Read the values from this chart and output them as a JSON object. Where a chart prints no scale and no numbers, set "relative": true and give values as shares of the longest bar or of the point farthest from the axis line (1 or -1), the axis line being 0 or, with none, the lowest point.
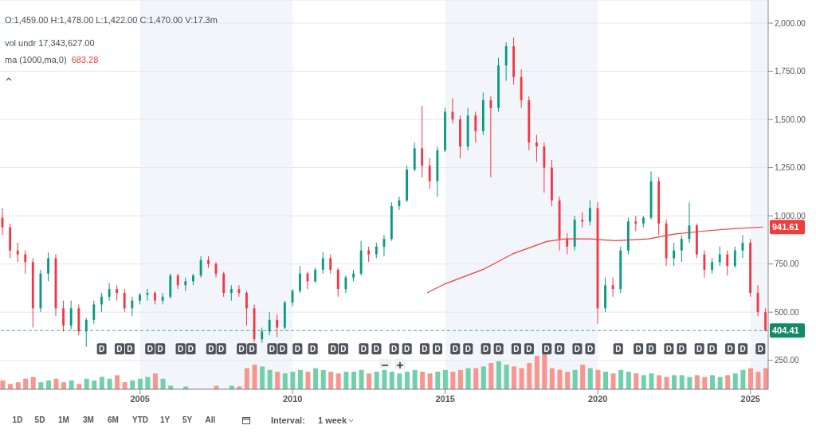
{
  "chart_data": [
    {
      "type": "candlestick",
      "grid": "y",
      "x": [
        "2000-07",
        "2000-10",
        "2001-01",
        "2001-04",
        "2001-07",
        "2001-10",
        "2002-01",
        "2002-04",
        "2002-07",
        "2002-10",
        "2003-01",
        "2003-04",
        "2003-07",
        "2003-10",
        "2004-01",
        "2004-04",
        "2004-07",
        "2004-10",
        "2005-01",
        "2005-04",
        "2005-07",
        "2005-10",
        "2006-01",
        "2006-04",
        "2006-07",
        "2006-10",
        "2007-01",
        "2007-04",
        "2007-07",
        "2007-10",
        "2008-01",
        "2008-04",
        "2008-07",
        "2008-10",
        "2009-01",
        "2009-04",
        "2009-07",
        "2009-10",
        "2010-01",
        "2010-04",
        "2010-07",
        "2010-10",
        "2011-01",
        "2011-04",
        "2011-07",
        "2011-10",
        "2012-01",
        "2012-04",
        "2012-07",
        "2012-10",
        "2013-01",
        "2013-04",
        "2013-07",
        "2013-10",
        "2014-01",
        "2014-04",
        "2014-07",
        "2014-10",
        "2015-01",
        "2015-04",
        "2015-07",
        "2015-10",
        "2016-01",
        "2016-04",
        "2016-07",
        "2016-10",
        "2017-01",
        "2017-04",
        "2017-07",
        "2017-10",
        "2018-01",
        "2018-04",
        "2018-07",
        "2018-10",
        "2019-01",
        "2019-04",
        "2019-07",
        "2019-10",
        "2020-01",
        "2020-04",
        "2020-07",
        "2020-10",
        "2021-01",
        "2021-04",
        "2021-07",
        "2021-10",
        "2022-01",
        "2022-04",
        "2022-07",
        "2022-10",
        "2023-01",
        "2023-04",
        "2023-07",
        "2023-10",
        "2024-01",
        "2024-04",
        "2024-07",
        "2024-10",
        "2025-01",
        "2025-04",
        "2025-07"
      ],
      "ohlc": [
        [
          990,
          1040,
          900,
          940
        ],
        [
          940,
          960,
          780,
          820
        ],
        [
          820,
          860,
          760,
          800
        ],
        [
          800,
          820,
          700,
          760
        ],
        [
          760,
          780,
          420,
          520
        ],
        [
          520,
          720,
          500,
          700
        ],
        [
          700,
          810,
          660,
          780
        ],
        [
          780,
          800,
          480,
          520
        ],
        [
          520,
          560,
          400,
          430
        ],
        [
          430,
          560,
          410,
          520
        ],
        [
          520,
          540,
          380,
          400
        ],
        [
          400,
          470,
          320,
          460
        ],
        [
          460,
          560,
          440,
          540
        ],
        [
          540,
          600,
          500,
          580
        ],
        [
          580,
          650,
          560,
          620
        ],
        [
          620,
          640,
          560,
          600
        ],
        [
          600,
          620,
          500,
          520
        ],
        [
          520,
          580,
          480,
          560
        ],
        [
          560,
          600,
          540,
          590
        ],
        [
          590,
          620,
          560,
          600
        ],
        [
          600,
          610,
          540,
          560
        ],
        [
          560,
          600,
          540,
          580
        ],
        [
          580,
          700,
          570,
          690
        ],
        [
          690,
          700,
          620,
          640
        ],
        [
          640,
          680,
          610,
          660
        ],
        [
          660,
          700,
          640,
          690
        ],
        [
          690,
          790,
          680,
          770
        ],
        [
          770,
          790,
          730,
          750
        ],
        [
          750,
          760,
          680,
          700
        ],
        [
          700,
          710,
          580,
          600
        ],
        [
          600,
          640,
          560,
          620
        ],
        [
          620,
          640,
          580,
          600
        ],
        [
          600,
          610,
          430,
          520
        ],
        [
          520,
          540,
          345,
          360
        ],
        [
          360,
          420,
          340,
          400
        ],
        [
          400,
          500,
          380,
          460
        ],
        [
          460,
          490,
          370,
          420
        ],
        [
          420,
          560,
          410,
          550
        ],
        [
          550,
          620,
          530,
          610
        ],
        [
          610,
          740,
          600,
          700
        ],
        [
          700,
          710,
          620,
          660
        ],
        [
          660,
          730,
          650,
          720
        ],
        [
          720,
          810,
          700,
          780
        ],
        [
          780,
          800,
          700,
          720
        ],
        [
          720,
          730,
          580,
          620
        ],
        [
          620,
          690,
          600,
          680
        ],
        [
          680,
          720,
          660,
          700
        ],
        [
          700,
          870,
          690,
          820
        ],
        [
          820,
          840,
          760,
          800
        ],
        [
          800,
          860,
          780,
          840
        ],
        [
          840,
          900,
          790,
          880
        ],
        [
          880,
          1070,
          870,
          1050
        ],
        [
          1050,
          1100,
          1030,
          1080
        ],
        [
          1080,
          1260,
          1070,
          1240
        ],
        [
          1240,
          1380,
          1230,
          1350
        ],
        [
          1350,
          1570,
          1200,
          1260
        ],
        [
          1260,
          1300,
          1140,
          1180
        ],
        [
          1180,
          1360,
          1100,
          1340
        ],
        [
          1340,
          1560,
          1330,
          1540
        ],
        [
          1540,
          1610,
          1480,
          1500
        ],
        [
          1500,
          1520,
          1300,
          1360
        ],
        [
          1360,
          1560,
          1340,
          1520
        ],
        [
          1520,
          1540,
          1380,
          1440
        ],
        [
          1440,
          1640,
          1420,
          1600
        ],
        [
          1600,
          1620,
          1200,
          1560
        ],
        [
          1560,
          1820,
          1540,
          1780
        ],
        [
          1780,
          1900,
          1700,
          1880
        ],
        [
          1880,
          1925,
          1680,
          1720
        ],
        [
          1720,
          1760,
          1560,
          1600
        ],
        [
          1600,
          1620,
          1340,
          1380
        ],
        [
          1380,
          1420,
          1280,
          1360
        ],
        [
          1360,
          1380,
          1120,
          1250
        ],
        [
          1250,
          1290,
          1050,
          1080
        ],
        [
          1080,
          1100,
          820,
          880
        ],
        [
          880,
          910,
          800,
          840
        ],
        [
          840,
          1000,
          820,
          980
        ],
        [
          980,
          1020,
          940,
          970
        ],
        [
          970,
          1080,
          950,
          1040
        ],
        [
          1040,
          1070,
          440,
          520
        ],
        [
          520,
          680,
          500,
          640
        ],
        [
          640,
          680,
          580,
          620
        ],
        [
          620,
          840,
          600,
          820
        ],
        [
          820,
          990,
          800,
          970
        ],
        [
          970,
          1000,
          920,
          960
        ],
        [
          960,
          1000,
          940,
          990
        ],
        [
          990,
          1230,
          980,
          1180
        ],
        [
          1180,
          1200,
          900,
          960
        ],
        [
          960,
          980,
          740,
          780
        ],
        [
          780,
          860,
          740,
          820
        ],
        [
          820,
          900,
          760,
          880
        ],
        [
          880,
          1070,
          860,
          950
        ],
        [
          950,
          960,
          780,
          800
        ],
        [
          800,
          820,
          680,
          720
        ],
        [
          720,
          780,
          700,
          760
        ],
        [
          760,
          840,
          740,
          800
        ],
        [
          800,
          820,
          690,
          740
        ],
        [
          740,
          840,
          730,
          820
        ],
        [
          820,
          900,
          780,
          860
        ],
        [
          860,
          880,
          580,
          600
        ],
        [
          600,
          640,
          480,
          500
        ],
        [
          500,
          520,
          400,
          404.41
        ]
      ],
      "colors": [
        "#f23645",
        "#f23645",
        "#f23645",
        "#f23645",
        "#f23645",
        "#089981",
        "#089981",
        "#f23645",
        "#f23645",
        "#089981",
        "#f23645",
        "#089981",
        "#089981",
        "#089981",
        "#089981",
        "#f23645",
        "#f23645",
        "#089981",
        "#089981",
        "#089981",
        "#f23645",
        "#089981",
        "#089981",
        "#f23645",
        "#089981",
        "#089981",
        "#089981",
        "#f23645",
        "#f23645",
        "#f23645",
        "#089981",
        "#f23645",
        "#f23645",
        "#f23645",
        "#089981",
        "#089981",
        "#f23645",
        "#089981",
        "#089981",
        "#089981",
        "#f23645",
        "#089981",
        "#089981",
        "#f23645",
        "#f23645",
        "#089981",
        "#089981",
        "#089981",
        "#f23645",
        "#089981",
        "#089981",
        "#089981",
        "#089981",
        "#089981",
        "#089981",
        "#f23645",
        "#f23645",
        "#089981",
        "#089981",
        "#f23645",
        "#f23645",
        "#089981",
        "#f23645",
        "#089981",
        "#f23645",
        "#089981",
        "#089981",
        "#f23645",
        "#f23645",
        "#f23645",
        "#f23645",
        "#f23645",
        "#f23645",
        "#f23645",
        "#f23645",
        "#089981",
        "#f23645",
        "#089981",
        "#f23645",
        "#089981",
        "#f23645",
        "#089981",
        "#089981",
        "#f23645",
        "#089981",
        "#089981",
        "#f23645",
        "#f23645",
        "#089981",
        "#089981",
        "#089981",
        "#f23645",
        "#f23645",
        "#089981",
        "#089981",
        "#f23645",
        "#089981",
        "#089981",
        "#f23645",
        "#f23645",
        "#f23645"
      ],
      "series": [
        {
          "type": "line",
          "color": "#f23b3b",
          "x": [
            "2014-06",
            "2015-01",
            "2016-04",
            "2017-04",
            "2018-05",
            "2018-12",
            "2019-10",
            "2020-08",
            "2021-09",
            "2022-07",
            "2023-07",
            "2024-07",
            "2025-06"
          ],
          "values": [
            601,
            647,
            722,
            805,
            867,
            880,
            880,
            871,
            880,
            905,
            921,
            934,
            941.61
          ],
          "value_labels": [
            null,
            null,
            null,
            null,
            null,
            null,
            null,
            null,
            null,
            null,
            null,
            null,
            "941.61"
          ]
        }
      ],
      "xlim": [
        "2000-06",
        "2025-08"
      ],
      "xticks": [
        "2005",
        "2010",
        "2015",
        "2020",
        "2025"
      ],
      "ylim": [
        100,
        2120
      ],
      "yticks": [
        {
          "value": 250,
          "label": "250.00"
        },
        {
          "value": 500,
          "label": "500.00"
        },
        {
          "value": 750,
          "label": "750.00"
        },
        {
          "value": 1000,
          "label": "1,000.00"
        },
        {
          "value": 1250,
          "label": "1,250.00"
        },
        {
          "value": 1500,
          "label": "1,500.00"
        },
        {
          "value": 1750,
          "label": "1,750.00"
        },
        {
          "value": 2000,
          "label": "2,000.00"
        }
      ],
      "bands": [
        {
          "axis": "x",
          "from": "2005",
          "to": "2010",
          "color": "#e6ecf3"
        },
        {
          "axis": "x",
          "from": "2015",
          "to": "2020",
          "color": "#e6ecf3"
        },
        {
          "axis": "x",
          "from": "2025",
          "to": "2025-08",
          "color": "#e6ecf3"
        }
      ],
      "ref_lines": [
        {
          "axis": "y",
          "value": 404.41,
          "label": "404.41",
          "color": "#138a68",
          "line_style": "dashed"
        }
      ],
      "annotations": [
        "O:1,459.00  H:1,478.00  L:1,422.00  C:1,470.00  V:17.3m",
        "vol undr  17,343,627.00",
        "ma (1000,ma,0)",
        "683.28",
        "1D",
        "5D",
        "1M",
        "3M",
        "6M",
        "YTD",
        "1Y",
        "5Y",
        "All",
        "Interval:",
        "1 week",
        {
          "text": "D",
          "x": "2003-10",
          "y": 310
        },
        {
          "text": "D",
          "x": "2004-05",
          "y": 310
        },
        {
          "text": "D",
          "x": "2004-09",
          "y": 310
        },
        {
          "text": "D",
          "x": "2005-05",
          "y": 310
        },
        {
          "text": "D",
          "x": "2005-09",
          "y": 310
        },
        {
          "text": "D",
          "x": "2006-05",
          "y": 310
        },
        {
          "text": "D",
          "x": "2006-09",
          "y": 310
        },
        {
          "text": "D",
          "x": "2007-05",
          "y": 310
        },
        {
          "text": "D",
          "x": "2007-09",
          "y": 310
        },
        {
          "text": "D",
          "x": "2008-05",
          "y": 310
        },
        {
          "text": "D",
          "x": "2008-09",
          "y": 310
        },
        {
          "text": "D",
          "x": "2009-05",
          "y": 310
        },
        {
          "text": "D",
          "x": "2009-09",
          "y": 310
        },
        {
          "text": "D",
          "x": "2010-03",
          "y": 310
        },
        {
          "text": "D",
          "x": "2010-09",
          "y": 310
        },
        {
          "text": "D",
          "x": "2011-05",
          "y": 310
        },
        {
          "text": "D",
          "x": "2011-09",
          "y": 310
        },
        {
          "text": "D",
          "x": "2012-05",
          "y": 310
        },
        {
          "text": "D",
          "x": "2012-10",
          "y": 310
        },
        {
          "text": "D",
          "x": "2013-05",
          "y": 310
        },
        {
          "text": "D",
          "x": "2013-10",
          "y": 310
        },
        {
          "text": "D",
          "x": "2014-05",
          "y": 310
        },
        {
          "text": "D",
          "x": "2014-10",
          "y": 310
        },
        {
          "text": "D",
          "x": "2015-05",
          "y": 310
        },
        {
          "text": "D",
          "x": "2015-10",
          "y": 310
        },
        {
          "text": "D",
          "x": "2016-05",
          "y": 310
        },
        {
          "text": "D",
          "x": "2016-10",
          "y": 310
        },
        {
          "text": "D",
          "x": "2017-05",
          "y": 310
        },
        {
          "text": "D",
          "x": "2017-10",
          "y": 310
        },
        {
          "text": "D",
          "x": "2018-05",
          "y": 310
        },
        {
          "text": "D",
          "x": "2018-10",
          "y": 310
        },
        {
          "text": "D",
          "x": "2019-05",
          "y": 310
        },
        {
          "text": "D",
          "x": "2019-10",
          "y": 310
        },
        {
          "text": "D",
          "x": "2020-09",
          "y": 310
        },
        {
          "text": "D",
          "x": "2021-05",
          "y": 310
        },
        {
          "text": "D",
          "x": "2021-10",
          "y": 310
        },
        {
          "text": "D",
          "x": "2022-05",
          "y": 310
        },
        {
          "text": "D",
          "x": "2022-10",
          "y": 310
        },
        {
          "text": "D",
          "x": "2023-05",
          "y": 310
        },
        {
          "text": "D",
          "x": "2023-10",
          "y": 310
        },
        {
          "text": "D",
          "x": "2024-05",
          "y": 310
        },
        {
          "text": "D",
          "x": "2024-10",
          "y": 310
        },
        {
          "text": "D",
          "x": "2025-05",
          "y": 310
        }
      ]
    },
    {
      "type": "bar",
      "relative": true,
      "x": [
        "2000-07",
        "2000-10",
        "2001-01",
        "2001-04",
        "2001-07",
        "2001-10",
        "2002-01",
        "2002-04",
        "2002-07",
        "2002-10",
        "2003-01",
        "2003-04",
        "2003-07",
        "2003-10",
        "2004-01",
        "2004-04",
        "2004-07",
        "2004-10",
        "2005-01",
        "2005-04",
        "2005-07",
        "2005-10",
        "2006-01",
        "2006-04",
        "2006-07",
        "2006-10",
        "2007-01",
        "2007-04",
        "2007-07",
        "2007-10",
        "2008-01",
        "2008-04",
        "2008-07",
        "2008-10",
        "2009-01",
        "2009-04",
        "2009-07",
        "2009-10",
        "2010-01",
        "2010-04",
        "2010-07",
        "2010-10",
        "2011-01",
        "2011-04",
        "2011-07",
        "2011-10",
        "2012-01",
        "2012-04",
        "2012-07",
        "2012-10",
        "2013-01",
        "2013-04",
        "2013-07",
        "2013-10",
        "2014-01",
        "2014-04",
        "2014-07",
        "2014-10",
        "2015-01",
        "2015-04",
        "2015-07",
        "2015-10",
        "2016-01",
        "2016-04",
        "2016-07",
        "2016-10",
        "2017-01",
        "2017-04",
        "2017-07",
        "2017-10",
        "2018-01",
        "2018-04",
        "2018-07",
        "2018-10",
        "2019-01",
        "2019-04",
        "2019-07",
        "2019-10",
        "2020-01",
        "2020-04",
        "2020-07",
        "2020-10",
        "2021-01",
        "2021-04",
        "2021-07",
        "2021-10",
        "2022-01",
        "2022-04",
        "2022-07",
        "2022-10",
        "2023-01",
        "2023-04",
        "2023-07",
        "2023-10",
        "2024-01",
        "2024-04",
        "2024-07",
        "2024-10",
        "2025-01",
        "2025-04",
        "2025-07"
      ],
      "values": [
        0.25,
        0.15,
        0.2,
        0.3,
        0.35,
        0.2,
        0.25,
        0.3,
        0.2,
        0.25,
        0.15,
        0.3,
        0.25,
        0.35,
        0.3,
        0.4,
        0.2,
        0.25,
        0.3,
        0.35,
        0.45,
        0.3,
        0.1,
        null,
        0.08,
        null,
        null,
        null,
        0.1,
        null,
        0.1,
        0.08,
        0.6,
        0.7,
        0.65,
        0.55,
        0.5,
        0.45,
        0.5,
        0.55,
        0.5,
        0.6,
        0.55,
        0.5,
        0.45,
        0.5,
        0.5,
        0.55,
        0.45,
        0.5,
        0.55,
        0.5,
        0.45,
        0.5,
        0.55,
        0.5,
        0.45,
        0.5,
        0.55,
        0.5,
        0.55,
        0.6,
        0.6,
        0.65,
        0.75,
        0.8,
        0.7,
        0.65,
        0.6,
        0.75,
        0.95,
        1,
        0.6,
        0.55,
        0.5,
        0.55,
        0.7,
        0.6,
        0.55,
        0.5,
        0.45,
        0.55,
        0.5,
        0.45,
        0.4,
        0.45,
        0.4,
        0.35,
        0.4,
        0.4,
        0.35,
        0.4,
        0.35,
        0.4,
        0.35,
        0.4,
        0.45,
        0.55,
        0.6,
        0.5,
        0.6
      ],
      "colors": [
        "#f7958e",
        "#f7958e",
        "#f7958e",
        "#f7958e",
        "#f7958e",
        "#6fd0a9",
        "#6fd0a9",
        "#f7958e",
        "#f7958e",
        "#6fd0a9",
        "#f7958e",
        "#6fd0a9",
        "#6fd0a9",
        "#6fd0a9",
        "#6fd0a9",
        "#f7958e",
        "#f7958e",
        "#6fd0a9",
        "#6fd0a9",
        "#6fd0a9",
        "#f7958e",
        "#6fd0a9",
        "#6fd0a9",
        "#f7958e",
        "#6fd0a9",
        "#6fd0a9",
        "#6fd0a9",
        "#f7958e",
        "#f7958e",
        "#f7958e",
        "#6fd0a9",
        "#f7958e",
        "#f7958e",
        "#f7958e",
        "#6fd0a9",
        "#6fd0a9",
        "#f7958e",
        "#6fd0a9",
        "#6fd0a9",
        "#6fd0a9",
        "#f7958e",
        "#6fd0a9",
        "#6fd0a9",
        "#f7958e",
        "#f7958e",
        "#6fd0a9",
        "#6fd0a9",
        "#6fd0a9",
        "#f7958e",
        "#6fd0a9",
        "#6fd0a9",
        "#6fd0a9",
        "#6fd0a9",
        "#6fd0a9",
        "#6fd0a9",
        "#f7958e",
        "#f7958e",
        "#6fd0a9",
        "#6fd0a9",
        "#f7958e",
        "#f7958e",
        "#6fd0a9",
        "#f7958e",
        "#6fd0a9",
        "#f7958e",
        "#6fd0a9",
        "#6fd0a9",
        "#f7958e",
        "#f7958e",
        "#f7958e",
        "#f7958e",
        "#f7958e",
        "#f7958e",
        "#f7958e",
        "#f7958e",
        "#6fd0a9",
        "#f7958e",
        "#6fd0a9",
        "#f7958e",
        "#6fd0a9",
        "#f7958e",
        "#6fd0a9",
        "#6fd0a9",
        "#f7958e",
        "#6fd0a9",
        "#6fd0a9",
        "#f7958e",
        "#f7958e",
        "#6fd0a9",
        "#6fd0a9",
        "#6fd0a9",
        "#f7958e",
        "#f7958e",
        "#6fd0a9",
        "#6fd0a9",
        "#f7958e",
        "#6fd0a9",
        "#6fd0a9",
        "#f7958e",
        "#f7958e",
        "#f7958e"
      ],
      "xlim": [
        "2000-06",
        "2025-08"
      ]
    }
  ]
}
